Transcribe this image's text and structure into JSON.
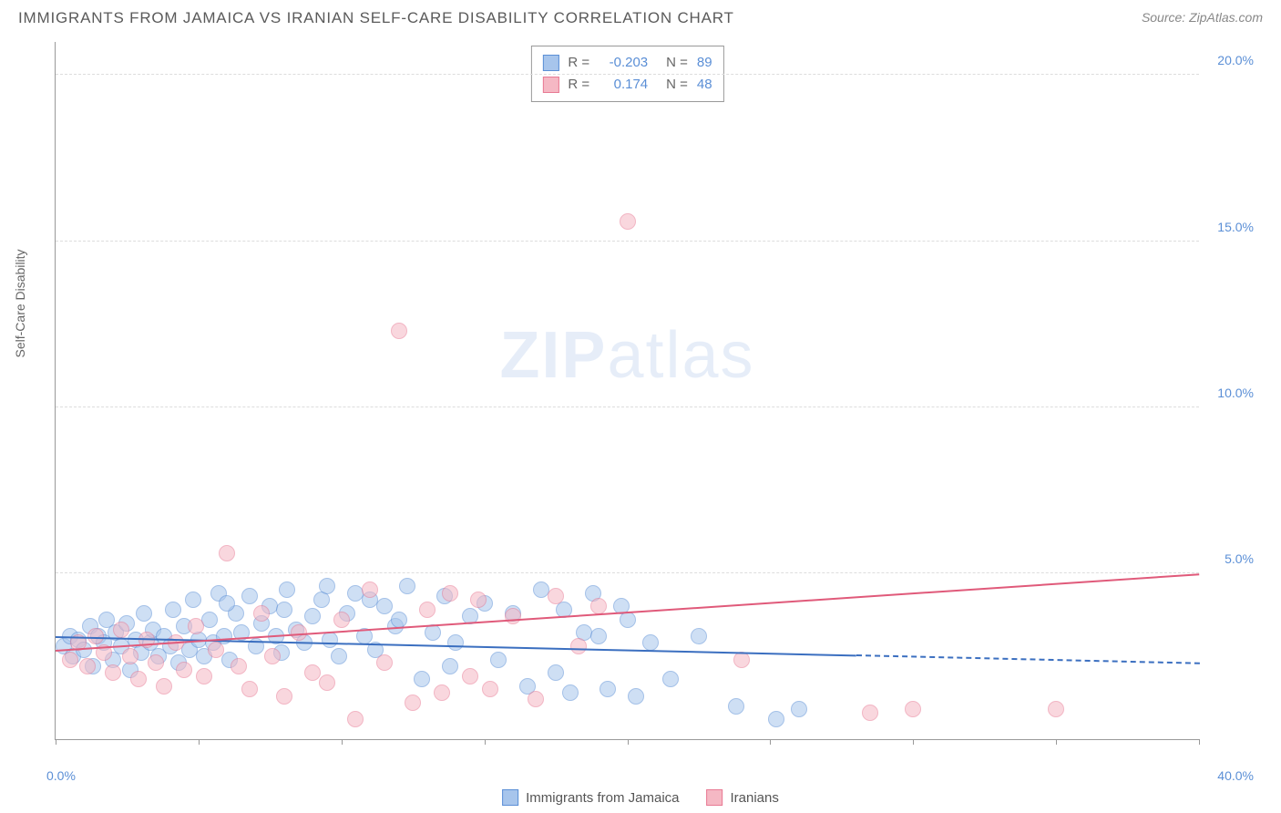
{
  "title": "IMMIGRANTS FROM JAMAICA VS IRANIAN SELF-CARE DISABILITY CORRELATION CHART",
  "source_label": "Source: ",
  "source_name": "ZipAtlas.com",
  "ylabel": "Self-Care Disability",
  "watermark_a": "ZIP",
  "watermark_b": "atlas",
  "chart": {
    "type": "scatter",
    "background_color": "#ffffff",
    "grid_color": "#dddddd",
    "axis_color": "#999999",
    "text_color": "#666666",
    "tick_label_color": "#5b8fd6",
    "xlim": [
      0,
      40
    ],
    "ylim": [
      0,
      21
    ],
    "x_ticks": [
      0,
      5,
      10,
      15,
      20,
      25,
      30,
      35,
      40
    ],
    "x_tick_labels": {
      "0": "0.0%",
      "40": "40.0%"
    },
    "y_ticks": [
      5,
      10,
      15,
      20
    ],
    "y_tick_labels": {
      "5": "5.0%",
      "10": "10.0%",
      "15": "15.0%",
      "20": "20.0%"
    },
    "point_radius": 9,
    "point_opacity": 0.55,
    "series": [
      {
        "name": "Immigrants from Jamaica",
        "fill_color": "#a7c5ec",
        "stroke_color": "#5b8fd6",
        "R": "-0.203",
        "N": "89",
        "trend": {
          "x0": 0,
          "y0": 3.1,
          "x1": 40,
          "y1": 2.3,
          "solid_until_x": 28,
          "color": "#3b6fc0",
          "width": 2
        },
        "points": [
          [
            0.3,
            2.8
          ],
          [
            0.5,
            3.1
          ],
          [
            0.6,
            2.5
          ],
          [
            0.8,
            3.0
          ],
          [
            1.0,
            2.7
          ],
          [
            1.2,
            3.4
          ],
          [
            1.3,
            2.2
          ],
          [
            1.5,
            3.1
          ],
          [
            1.7,
            2.9
          ],
          [
            1.8,
            3.6
          ],
          [
            2.0,
            2.4
          ],
          [
            2.1,
            3.2
          ],
          [
            2.3,
            2.8
          ],
          [
            2.5,
            3.5
          ],
          [
            2.6,
            2.1
          ],
          [
            2.8,
            3.0
          ],
          [
            3.0,
            2.6
          ],
          [
            3.1,
            3.8
          ],
          [
            3.3,
            2.9
          ],
          [
            3.4,
            3.3
          ],
          [
            3.6,
            2.5
          ],
          [
            3.8,
            3.1
          ],
          [
            4.0,
            2.8
          ],
          [
            4.1,
            3.9
          ],
          [
            4.3,
            2.3
          ],
          [
            4.5,
            3.4
          ],
          [
            4.7,
            2.7
          ],
          [
            4.8,
            4.2
          ],
          [
            5.0,
            3.0
          ],
          [
            5.2,
            2.5
          ],
          [
            5.4,
            3.6
          ],
          [
            5.5,
            2.9
          ],
          [
            5.7,
            4.4
          ],
          [
            5.9,
            3.1
          ],
          [
            6.1,
            2.4
          ],
          [
            6.3,
            3.8
          ],
          [
            6.5,
            3.2
          ],
          [
            6.8,
            4.3
          ],
          [
            7.0,
            2.8
          ],
          [
            7.2,
            3.5
          ],
          [
            7.5,
            4.0
          ],
          [
            7.7,
            3.1
          ],
          [
            7.9,
            2.6
          ],
          [
            8.1,
            4.5
          ],
          [
            8.4,
            3.3
          ],
          [
            8.7,
            2.9
          ],
          [
            9.0,
            3.7
          ],
          [
            9.3,
            4.2
          ],
          [
            9.6,
            3.0
          ],
          [
            9.9,
            2.5
          ],
          [
            10.2,
            3.8
          ],
          [
            10.5,
            4.4
          ],
          [
            10.8,
            3.1
          ],
          [
            11.2,
            2.7
          ],
          [
            11.5,
            4.0
          ],
          [
            11.9,
            3.4
          ],
          [
            12.3,
            4.6
          ],
          [
            12.8,
            1.8
          ],
          [
            13.2,
            3.2
          ],
          [
            13.6,
            4.3
          ],
          [
            14.0,
            2.9
          ],
          [
            14.5,
            3.7
          ],
          [
            15.0,
            4.1
          ],
          [
            15.5,
            2.4
          ],
          [
            16.0,
            3.8
          ],
          [
            16.5,
            1.6
          ],
          [
            17.0,
            4.5
          ],
          [
            17.5,
            2.0
          ],
          [
            18.0,
            1.4
          ],
          [
            18.5,
            3.2
          ],
          [
            18.8,
            4.4
          ],
          [
            19.0,
            3.1
          ],
          [
            19.3,
            1.5
          ],
          [
            19.8,
            4.0
          ],
          [
            20.0,
            3.6
          ],
          [
            20.3,
            1.3
          ],
          [
            20.8,
            2.9
          ],
          [
            21.5,
            1.8
          ],
          [
            22.5,
            3.1
          ],
          [
            23.8,
            1.0
          ],
          [
            25.2,
            0.6
          ],
          [
            26.0,
            0.9
          ],
          [
            17.8,
            3.9
          ],
          [
            11.0,
            4.2
          ],
          [
            9.5,
            4.6
          ],
          [
            8.0,
            3.9
          ],
          [
            6.0,
            4.1
          ],
          [
            12.0,
            3.6
          ],
          [
            13.8,
            2.2
          ]
        ]
      },
      {
        "name": "Iranians",
        "fill_color": "#f5b8c4",
        "stroke_color": "#e87a94",
        "R": "0.174",
        "N": "48",
        "trend": {
          "x0": 0,
          "y0": 2.7,
          "x1": 40,
          "y1": 5.0,
          "solid_until_x": 40,
          "color": "#e05a7a",
          "width": 2
        },
        "points": [
          [
            0.5,
            2.4
          ],
          [
            0.8,
            2.9
          ],
          [
            1.1,
            2.2
          ],
          [
            1.4,
            3.1
          ],
          [
            1.7,
            2.6
          ],
          [
            2.0,
            2.0
          ],
          [
            2.3,
            3.3
          ],
          [
            2.6,
            2.5
          ],
          [
            2.9,
            1.8
          ],
          [
            3.2,
            3.0
          ],
          [
            3.5,
            2.3
          ],
          [
            3.8,
            1.6
          ],
          [
            4.2,
            2.9
          ],
          [
            4.5,
            2.1
          ],
          [
            4.9,
            3.4
          ],
          [
            5.2,
            1.9
          ],
          [
            5.6,
            2.7
          ],
          [
            6.0,
            5.6
          ],
          [
            6.4,
            2.2
          ],
          [
            6.8,
            1.5
          ],
          [
            7.2,
            3.8
          ],
          [
            7.6,
            2.5
          ],
          [
            8.0,
            1.3
          ],
          [
            8.5,
            3.2
          ],
          [
            9.0,
            2.0
          ],
          [
            9.5,
            1.7
          ],
          [
            10.0,
            3.6
          ],
          [
            10.5,
            0.6
          ],
          [
            11.0,
            4.5
          ],
          [
            11.5,
            2.3
          ],
          [
            12.0,
            12.3
          ],
          [
            12.5,
            1.1
          ],
          [
            13.0,
            3.9
          ],
          [
            13.8,
            4.4
          ],
          [
            14.5,
            1.9
          ],
          [
            15.2,
            1.5
          ],
          [
            16.0,
            3.7
          ],
          [
            16.8,
            1.2
          ],
          [
            17.5,
            4.3
          ],
          [
            18.3,
            2.8
          ],
          [
            19.0,
            4.0
          ],
          [
            20.0,
            15.6
          ],
          [
            24.0,
            2.4
          ],
          [
            28.5,
            0.8
          ],
          [
            30.0,
            0.9
          ],
          [
            35.0,
            0.9
          ],
          [
            14.8,
            4.2
          ],
          [
            13.5,
            1.4
          ]
        ]
      }
    ]
  },
  "legend_labels": {
    "R_prefix": "R = ",
    "N_prefix": "N = "
  }
}
